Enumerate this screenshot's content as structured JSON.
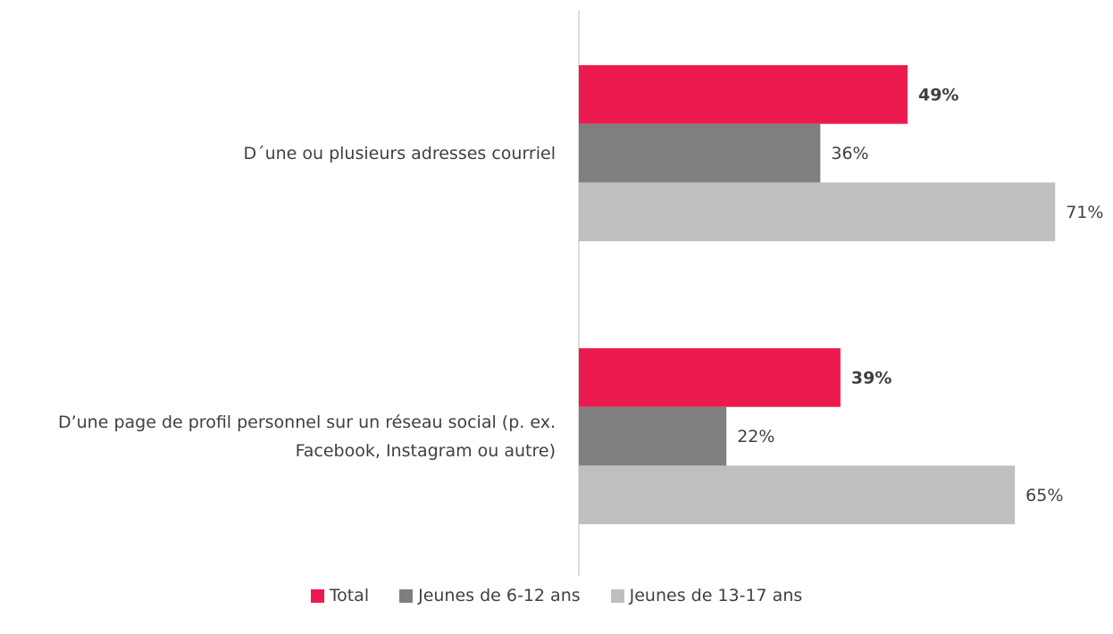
{
  "chart_data": {
    "type": "hbar",
    "categories": [
      "D´une ou plusieurs adresses courriel",
      "D’une page de profil personnel sur un réseau social (p. ex. Facebook, Instagram ou autre)"
    ],
    "series": [
      {
        "name": "Total",
        "color": "#ed1a4f",
        "values": [
          49,
          39
        ],
        "value_labels": [
          "49%",
          "39%"
        ]
      },
      {
        "name": "Jeunes de 6-12 ans",
        "color": "#7f7f7f",
        "values": [
          36,
          22
        ],
        "value_labels": [
          "36%",
          "22%"
        ]
      },
      {
        "name": "Jeunes de 13-17 ans",
        "color": "#bfbfbf",
        "values": [
          71,
          65
        ],
        "value_labels": [
          "71%",
          "65%"
        ]
      }
    ],
    "legend": "bottom"
  }
}
